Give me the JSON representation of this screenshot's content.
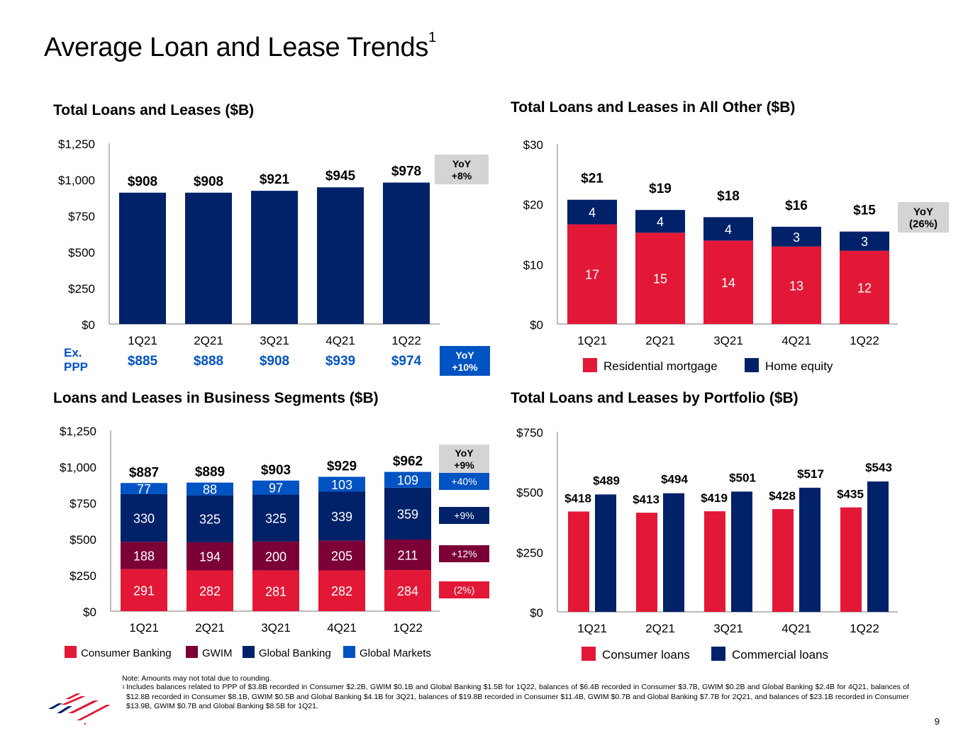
{
  "page": {
    "title": "Average Loan and Lease Trends",
    "title_superscript": "1",
    "page_number": "9",
    "note": "Note: Amounts may not total due to rounding.",
    "footnote_marker": "1",
    "footnote": "Includes balances related to PPP of $3.8B recorded in Consumer $2.2B, GWIM $0.1B and Global Banking $1.5B for 1Q22, balances of $6.4B recorded in Consumer $3.7B, GWIM $0.2B and Global Banking $2.4B for 4Q21, balances of $12.8B recorded in Consumer $8.1B, GWIM $0.5B and Global Banking $4.1B for 3Q21, balances of $19.8B recorded in Consumer $11.4B, GWIM $0.7B and Global Banking $7.7B for 2Q21, and balances of $23.1B recorded in Consumer $13.9B, GWIM $0.7B and Global Banking $8.5B for 1Q21.",
    "logo": "bank-flag-logo"
  },
  "colors": {
    "navy": "#012169",
    "red": "#E31837",
    "maroon": "#7A0036",
    "bright_blue": "#0053C2",
    "ex_ppp_blue": "#0053C2",
    "yoy_gray": "#D4D4D4",
    "axis_gray": "#A6A6A6"
  },
  "chart_data": [
    {
      "id": "total",
      "type": "bar",
      "title": "Total Loans and Leases ($B)",
      "categories": [
        "1Q21",
        "2Q21",
        "3Q21",
        "4Q21",
        "1Q22"
      ],
      "values": [
        908,
        908,
        921,
        945,
        978
      ],
      "data_labels": [
        "$908",
        "$908",
        "$921",
        "$945",
        "$978"
      ],
      "ylim": [
        0,
        1250
      ],
      "yticks": [
        0,
        250,
        500,
        750,
        1000,
        1250
      ],
      "ytick_labels": [
        "$0",
        "$250",
        "$500",
        "$750",
        "$1,000",
        "$1,250"
      ],
      "grid": false,
      "yoy": {
        "label": "YoY",
        "value": "+8%"
      },
      "ex_ppp": {
        "label": "Ex. PPP",
        "values": [
          885,
          888,
          908,
          939,
          974
        ],
        "value_labels": [
          "$885",
          "$888",
          "$908",
          "$939",
          "$974"
        ],
        "yoy": {
          "label": "YoY",
          "value": "+10%"
        }
      }
    },
    {
      "id": "all_other",
      "type": "bar",
      "stacked": true,
      "title": "Total Loans and Leases in All Other ($B)",
      "categories": [
        "1Q21",
        "2Q21",
        "3Q21",
        "4Q21",
        "1Q22"
      ],
      "series": [
        {
          "name": "Residential mortgage",
          "values": [
            16.6,
            15.2,
            13.9,
            12.9,
            12.2
          ],
          "labels": [
            "17",
            "15",
            "14",
            "13",
            "12"
          ],
          "color": "#E31837"
        },
        {
          "name": "Home equity",
          "values": [
            4.1,
            3.8,
            3.9,
            3.3,
            3.2
          ],
          "labels": [
            "4",
            "4",
            "4",
            "3",
            "3"
          ],
          "color": "#012169"
        }
      ],
      "totals": [
        "$21",
        "$19",
        "$18",
        "$16",
        "$15"
      ],
      "ylim": [
        0,
        30
      ],
      "yticks": [
        0,
        10,
        20,
        30
      ],
      "ytick_labels": [
        "$0",
        "$10",
        "$20",
        "$30"
      ],
      "grid": false,
      "legend": "bottom",
      "yoy": {
        "label": "YoY",
        "value": "(26%)"
      }
    },
    {
      "id": "segments",
      "type": "bar",
      "stacked": true,
      "title": "Loans and Leases in Business Segments ($B)",
      "categories": [
        "1Q21",
        "2Q21",
        "3Q21",
        "4Q21",
        "1Q22"
      ],
      "series": [
        {
          "name": "Consumer Banking",
          "values": [
            291,
            282,
            281,
            282,
            284
          ],
          "color": "#E31837",
          "yoy": "(2%)"
        },
        {
          "name": "GWIM",
          "values": [
            188,
            194,
            200,
            205,
            211
          ],
          "color": "#7A0036",
          "yoy": "+12%"
        },
        {
          "name": "Global Banking",
          "values": [
            330,
            325,
            325,
            339,
            359
          ],
          "color": "#012169",
          "yoy": "+9%"
        },
        {
          "name": "Global Markets",
          "values": [
            77,
            88,
            97,
            103,
            109
          ],
          "color": "#0053C2",
          "yoy": "+40%"
        }
      ],
      "totals": [
        "$887",
        "$889",
        "$903",
        "$929",
        "$962"
      ],
      "ylim": [
        0,
        1250
      ],
      "yticks": [
        0,
        250,
        500,
        750,
        1000,
        1250
      ],
      "ytick_labels": [
        "$0",
        "$250",
        "$500",
        "$750",
        "$1,000",
        "$1,250"
      ],
      "grid": false,
      "legend": "bottom",
      "yoy": {
        "label": "YoY",
        "value": "+9%"
      }
    },
    {
      "id": "portfolio",
      "type": "bar",
      "grouped": true,
      "title": "Total Loans and Leases by Portfolio ($B)",
      "categories": [
        "1Q21",
        "2Q21",
        "3Q21",
        "4Q21",
        "1Q22"
      ],
      "series": [
        {
          "name": "Consumer loans",
          "values": [
            418,
            413,
            419,
            428,
            435
          ],
          "labels": [
            "$418",
            "$413",
            "$419",
            "$428",
            "$435"
          ],
          "color": "#E31837"
        },
        {
          "name": "Commercial loans",
          "values": [
            489,
            494,
            501,
            517,
            543
          ],
          "labels": [
            "$489",
            "$494",
            "$501",
            "$517",
            "$543"
          ],
          "color": "#012169"
        }
      ],
      "ylim": [
        0,
        750
      ],
      "yticks": [
        0,
        250,
        500,
        750
      ],
      "ytick_labels": [
        "$0",
        "$250",
        "$500",
        "$750"
      ],
      "grid": false,
      "legend": "bottom"
    }
  ]
}
